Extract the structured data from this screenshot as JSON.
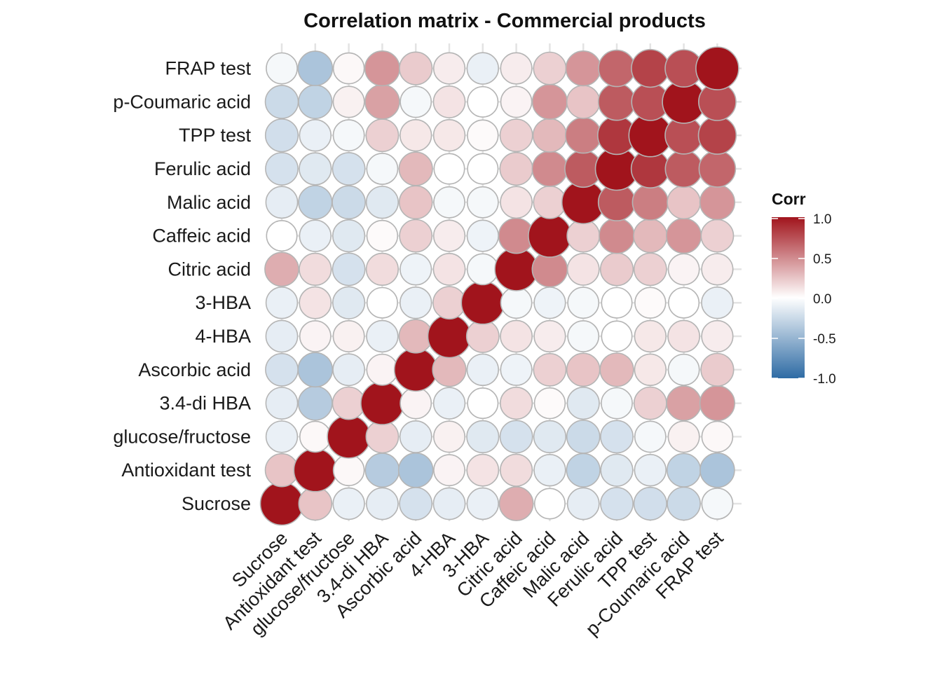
{
  "chart_data": {
    "type": "heatmap",
    "title": "Correlation matrix - Commercial products",
    "xlabel": "",
    "ylabel": "",
    "variables": [
      "Sucrose",
      "Antioxidant test",
      "glucose/fructose",
      "3.4-di HBA",
      "Ascorbic acid",
      "4-HBA",
      "3-HBA",
      "Citric acid",
      "Caffeic acid",
      "Malic acid",
      "Ferulic acid",
      "TPP test",
      "p-Coumaric acid",
      "FRAP test"
    ],
    "matrix": [
      [
        1.0,
        0.25,
        -0.1,
        -0.12,
        -0.2,
        -0.12,
        -0.1,
        0.35,
        0.0,
        -0.12,
        -0.2,
        -0.22,
        -0.25,
        -0.05
      ],
      [
        0.25,
        1.0,
        0.03,
        -0.35,
        -0.4,
        0.05,
        0.12,
        0.15,
        -0.1,
        -0.3,
        -0.15,
        -0.1,
        -0.3,
        -0.4
      ],
      [
        -0.1,
        0.03,
        1.0,
        0.2,
        -0.12,
        0.06,
        -0.15,
        -0.2,
        -0.15,
        -0.25,
        -0.2,
        -0.05,
        0.06,
        0.03
      ],
      [
        -0.12,
        -0.35,
        0.2,
        1.0,
        0.05,
        -0.1,
        0.0,
        0.15,
        0.02,
        -0.15,
        -0.05,
        0.2,
        0.4,
        0.45
      ],
      [
        -0.2,
        -0.4,
        -0.12,
        0.05,
        1.0,
        0.3,
        -0.1,
        -0.08,
        0.2,
        0.25,
        0.3,
        0.1,
        -0.05,
        0.22
      ],
      [
        -0.12,
        0.05,
        0.06,
        -0.1,
        0.3,
        1.0,
        0.2,
        0.12,
        0.08,
        -0.05,
        0.0,
        0.1,
        0.12,
        0.08
      ],
      [
        -0.1,
        0.12,
        -0.15,
        0.0,
        -0.1,
        0.2,
        1.0,
        -0.05,
        -0.08,
        -0.05,
        0.0,
        0.02,
        0.0,
        -0.1
      ],
      [
        0.35,
        0.15,
        -0.2,
        0.15,
        -0.08,
        0.12,
        -0.05,
        1.0,
        0.5,
        0.12,
        0.22,
        0.2,
        0.05,
        0.08
      ],
      [
        0.0,
        -0.1,
        -0.15,
        0.02,
        0.2,
        0.08,
        -0.08,
        0.5,
        1.0,
        0.2,
        0.5,
        0.3,
        0.45,
        0.2
      ],
      [
        -0.12,
        -0.3,
        -0.25,
        -0.15,
        0.25,
        -0.05,
        -0.05,
        0.12,
        0.2,
        1.0,
        0.7,
        0.55,
        0.25,
        0.45
      ],
      [
        -0.2,
        -0.15,
        -0.2,
        -0.05,
        0.3,
        0.0,
        0.0,
        0.22,
        0.5,
        0.7,
        1.0,
        0.85,
        0.7,
        0.65
      ],
      [
        -0.22,
        -0.1,
        -0.05,
        0.2,
        0.1,
        0.1,
        0.02,
        0.2,
        0.3,
        0.55,
        0.85,
        1.0,
        0.75,
        0.8
      ],
      [
        -0.25,
        -0.3,
        0.06,
        0.4,
        -0.05,
        0.12,
        0.0,
        0.05,
        0.45,
        0.25,
        0.7,
        0.75,
        1.0,
        0.75
      ],
      [
        -0.05,
        -0.4,
        0.03,
        0.45,
        0.22,
        0.08,
        -0.1,
        0.08,
        0.2,
        0.45,
        0.65,
        0.8,
        0.75,
        1.0
      ]
    ],
    "range": [
      -1.0,
      1.0
    ],
    "legend": {
      "title": "Corr",
      "ticks": [
        "1.0",
        "0.5",
        "0.0",
        "-0.5",
        "-1.0"
      ],
      "placement": "right",
      "colors": {
        "low": "#2e6ba4",
        "mid": "#ffffff",
        "high": "#a1141c"
      }
    },
    "grid": true,
    "marker": "circle"
  }
}
